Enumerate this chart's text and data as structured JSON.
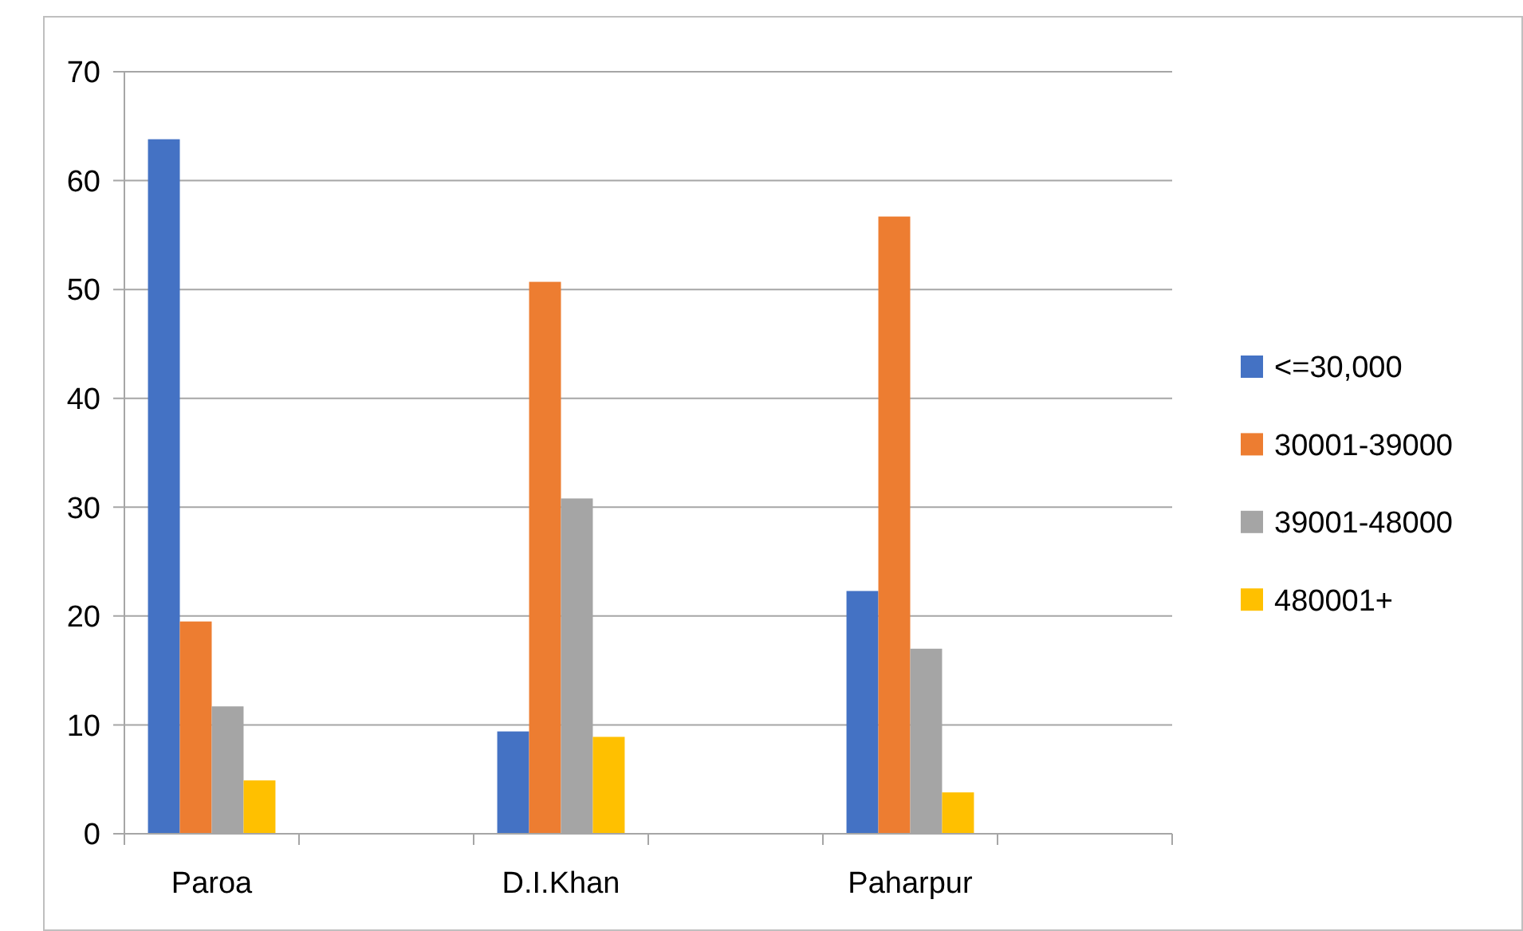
{
  "chart_data": {
    "type": "bar",
    "categories": [
      "Paroa",
      null,
      "D.I.Khan",
      null,
      "Paharpur",
      null
    ],
    "series": [
      {
        "name": "<=30,000",
        "color": "#4472c4",
        "values": [
          63.8,
          null,
          9.4,
          null,
          22.3,
          null
        ]
      },
      {
        "name": "30001-39000",
        "color": "#ed7d31",
        "values": [
          19.5,
          null,
          50.7,
          null,
          56.7,
          null
        ]
      },
      {
        "name": "39001-48000",
        "color": "#a5a5a5",
        "values": [
          11.7,
          null,
          30.8,
          null,
          17.0,
          null
        ]
      },
      {
        "name": "480001+",
        "color": "#ffc000",
        "values": [
          4.9,
          null,
          8.9,
          null,
          3.8,
          null
        ]
      }
    ],
    "ylim": [
      0,
      70
    ],
    "yticks": [
      0,
      10,
      20,
      30,
      40,
      50,
      60,
      70
    ],
    "grid": "y",
    "legend": "right"
  }
}
